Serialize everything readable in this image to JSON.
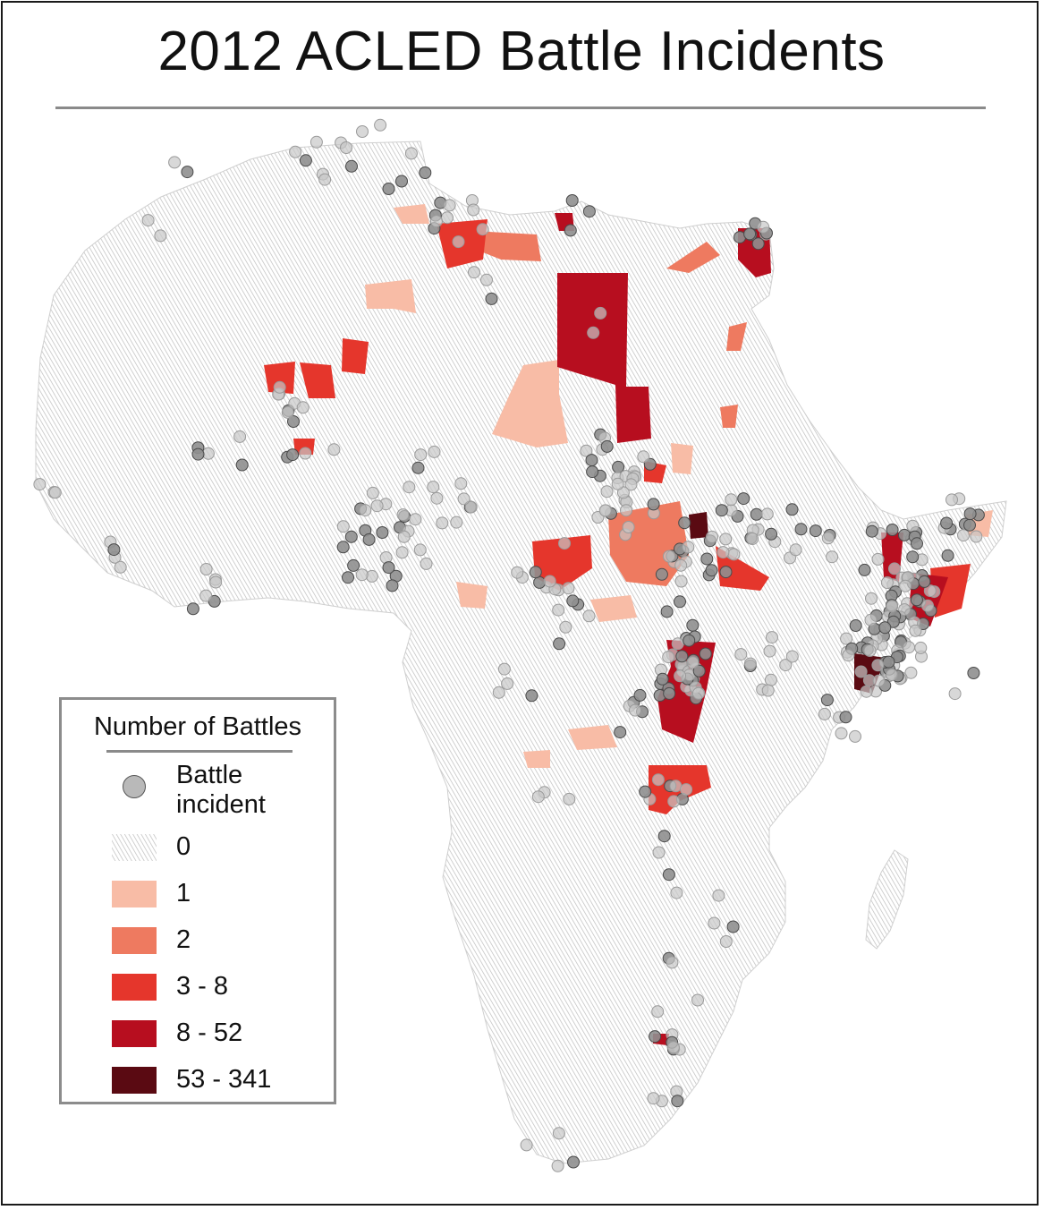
{
  "title": "2012 ACLED Battle Incidents",
  "legend": {
    "title": "Number of Battles",
    "incident_label": "Battle incident",
    "classes": [
      {
        "label": "0",
        "color": "hatch-gray"
      },
      {
        "label": "1",
        "color": "#f8bca6"
      },
      {
        "label": "2",
        "color": "#ee7a60"
      },
      {
        "label": "3 - 8",
        "color": "#e5362c"
      },
      {
        "label": "8 - 52",
        "color": "#b70e1f"
      },
      {
        "label": "53 - 341",
        "color": "#5a0a12"
      }
    ]
  },
  "colors": {
    "incident_fill": "#a9a9a9",
    "incident_stroke": "#555555",
    "land_hatch": "#c4c4c4",
    "frame": "#1a1a1a",
    "rule": "#8a8a8a"
  }
}
